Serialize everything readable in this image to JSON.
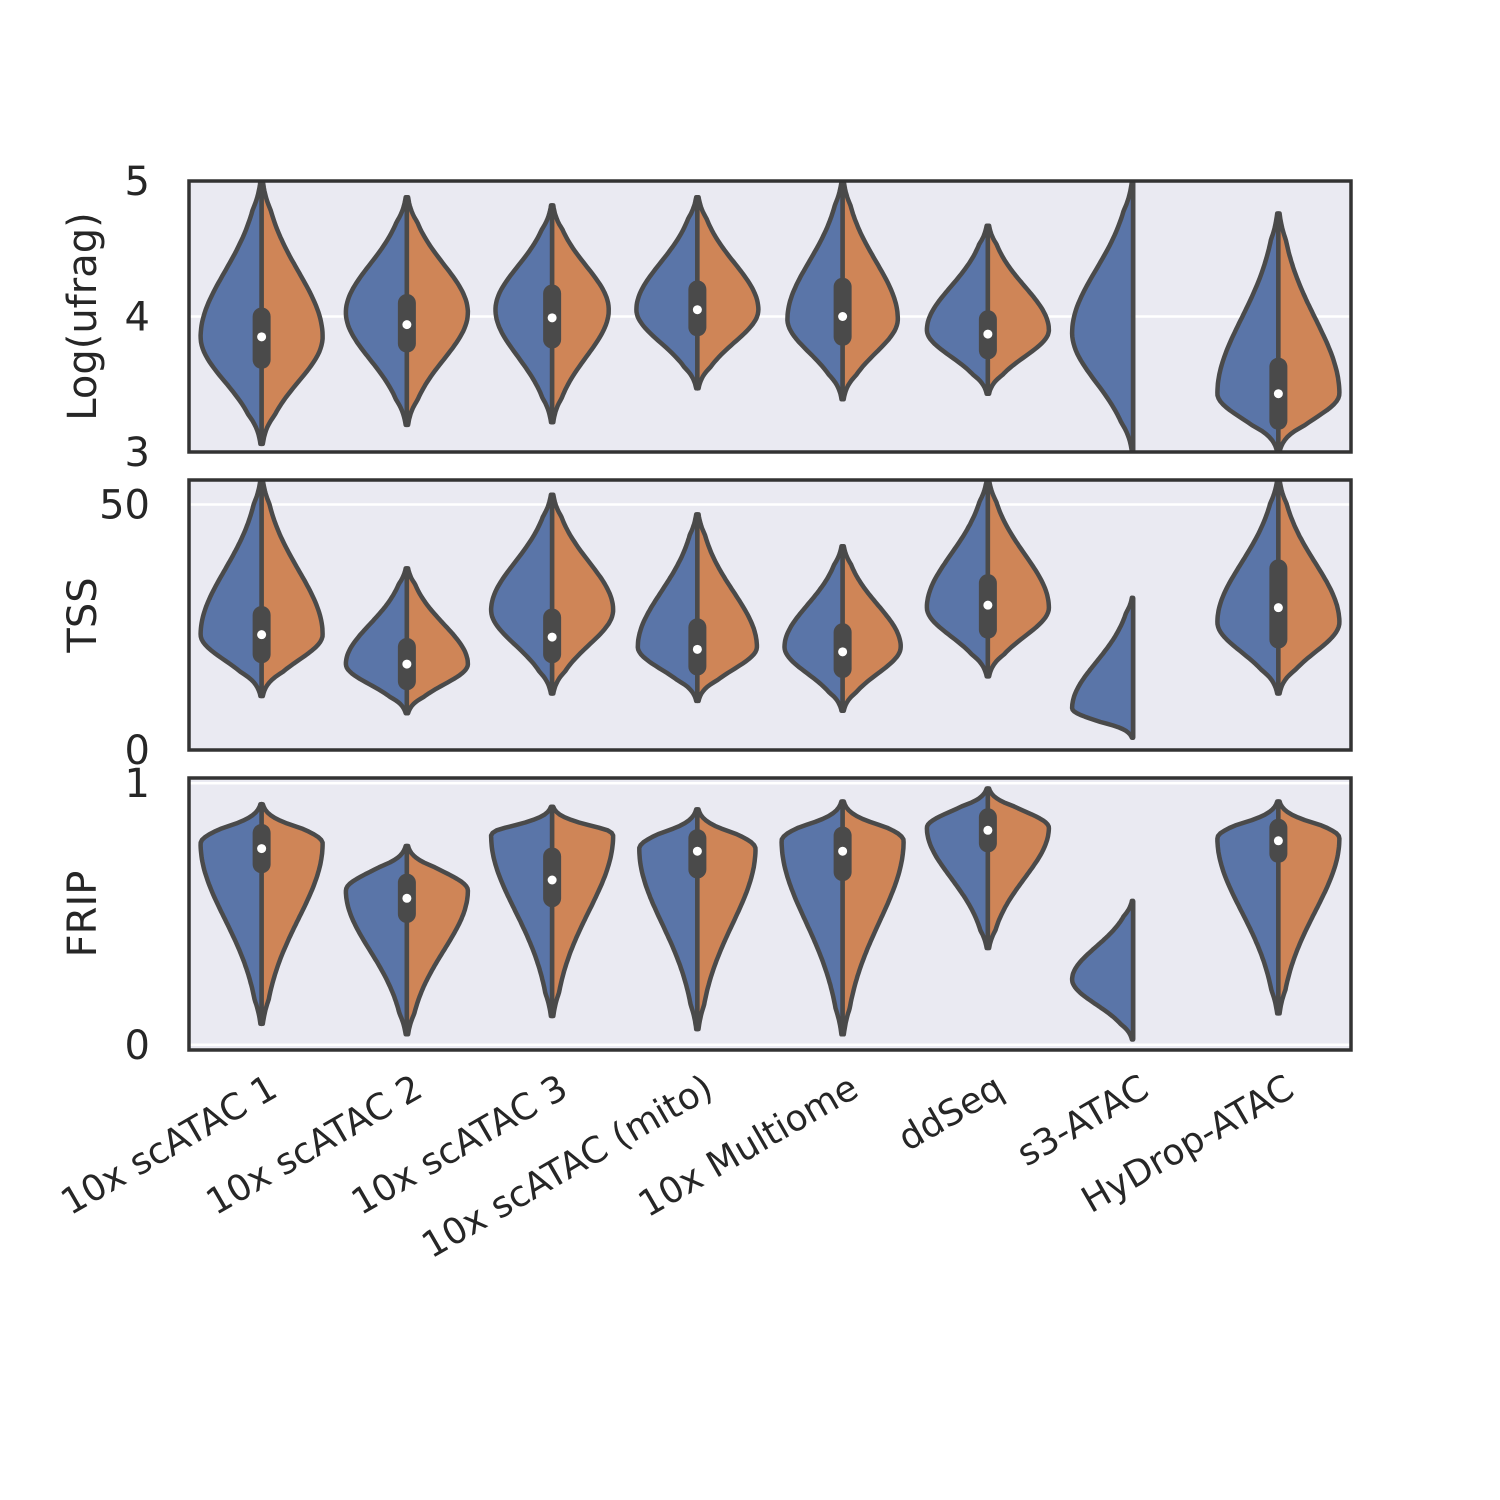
{
  "chart_data": {
    "type": "violin",
    "split": true,
    "colors": {
      "left": "#5a75a8",
      "right": "#cf8557",
      "outline": "#4a4a4a",
      "panel_bg": "#eaeaf2",
      "grid": "#ffffff"
    },
    "categories": [
      "10x scATAC 1",
      "10x scATAC 2",
      "10x scATAC 3",
      "10x scATAC (mito)",
      "10x Multiome",
      "ddSeq",
      "s3-ATAC",
      "HyDrop-ATAC"
    ],
    "panels": [
      {
        "ylabel": "Log(ufrag)",
        "ylim": [
          3,
          5
        ],
        "yticks": [
          "3",
          "4",
          "5"
        ],
        "tick_values": [
          3,
          4,
          5
        ],
        "violins": [
          {
            "min": 3.06,
            "max": 5.0,
            "mode": 3.85,
            "halfwidth": 0.42,
            "median": 3.85,
            "q1": 3.68,
            "q3": 4.0,
            "sides": "both"
          },
          {
            "min": 3.2,
            "max": 4.88,
            "mode": 4.03,
            "halfwidth": 0.42,
            "median": 3.94,
            "q1": 3.8,
            "q3": 4.1,
            "sides": "both"
          },
          {
            "min": 3.22,
            "max": 4.82,
            "mode": 4.05,
            "halfwidth": 0.39,
            "median": 3.99,
            "q1": 3.83,
            "q3": 4.17,
            "sides": "both"
          },
          {
            "min": 3.47,
            "max": 4.88,
            "mode": 4.05,
            "halfwidth": 0.42,
            "median": 4.05,
            "q1": 3.92,
            "q3": 4.2,
            "sides": "both"
          },
          {
            "min": 3.39,
            "max": 5.0,
            "mode": 3.98,
            "halfwidth": 0.38,
            "median": 4.0,
            "q1": 3.85,
            "q3": 4.22,
            "sides": "both"
          },
          {
            "min": 3.43,
            "max": 4.67,
            "mode": 3.9,
            "halfwidth": 0.42,
            "median": 3.87,
            "q1": 3.75,
            "q3": 3.98,
            "sides": "both"
          },
          {
            "min": 3.0,
            "max": 5.0,
            "mode": 3.88,
            "halfwidth": 0.42,
            "sides": "left"
          },
          {
            "min": 3.0,
            "max": 4.76,
            "mode": 3.43,
            "halfwidth": 0.42,
            "median": 3.43,
            "q1": 3.23,
            "q3": 3.63,
            "sides": "both"
          }
        ]
      },
      {
        "ylabel": "TSS",
        "ylim": [
          0,
          55
        ],
        "yticks": [
          "0",
          "50"
        ],
        "tick_values": [
          0,
          50
        ],
        "violins": [
          {
            "min": 11,
            "max": 55,
            "mode": 23.5,
            "halfwidth": 0.42,
            "median": 23.5,
            "q1": 19.5,
            "q3": 27.5,
            "sides": "both"
          },
          {
            "min": 7.5,
            "max": 37,
            "mode": 17.5,
            "halfwidth": 0.42,
            "median": 17.5,
            "q1": 14,
            "q3": 21,
            "sides": "both"
          },
          {
            "min": 11.5,
            "max": 52,
            "mode": 28.5,
            "halfwidth": 0.42,
            "median": 23,
            "q1": 19.5,
            "q3": 27,
            "sides": "both"
          },
          {
            "min": 10,
            "max": 48,
            "mode": 21,
            "halfwidth": 0.41,
            "median": 20.5,
            "q1": 17,
            "q3": 25,
            "sides": "both"
          },
          {
            "min": 8,
            "max": 41.5,
            "mode": 21,
            "halfwidth": 0.4,
            "median": 20,
            "q1": 16.5,
            "q3": 24,
            "sides": "both"
          },
          {
            "min": 15,
            "max": 55,
            "mode": 29,
            "halfwidth": 0.42,
            "median": 29.5,
            "q1": 24.5,
            "q3": 34,
            "sides": "both"
          },
          {
            "min": 2.5,
            "max": 31,
            "mode": 8.5,
            "halfwidth": 0.42,
            "sides": "left"
          },
          {
            "min": 11.5,
            "max": 55,
            "mode": 26,
            "halfwidth": 0.42,
            "median": 29,
            "q1": 22.5,
            "q3": 37,
            "sides": "both"
          }
        ]
      },
      {
        "ylabel": "FRIP",
        "ylim": [
          -0.02,
          1.02
        ],
        "yticks": [
          "0",
          "1"
        ],
        "tick_values": [
          0,
          1
        ],
        "violins": [
          {
            "min": 0.08,
            "max": 0.92,
            "mode": 0.77,
            "halfwidth": 0.42,
            "median": 0.75,
            "q1": 0.69,
            "q3": 0.81,
            "sides": "both"
          },
          {
            "min": 0.04,
            "max": 0.76,
            "mode": 0.59,
            "halfwidth": 0.42,
            "median": 0.56,
            "q1": 0.5,
            "q3": 0.62,
            "sides": "both"
          },
          {
            "min": 0.11,
            "max": 0.91,
            "mode": 0.8,
            "halfwidth": 0.42,
            "median": 0.63,
            "q1": 0.56,
            "q3": 0.72,
            "sides": "both"
          },
          {
            "min": 0.06,
            "max": 0.9,
            "mode": 0.75,
            "halfwidth": 0.4,
            "median": 0.74,
            "q1": 0.67,
            "q3": 0.79,
            "sides": "both"
          },
          {
            "min": 0.04,
            "max": 0.93,
            "mode": 0.78,
            "halfwidth": 0.42,
            "median": 0.74,
            "q1": 0.66,
            "q3": 0.8,
            "sides": "both"
          },
          {
            "min": 0.37,
            "max": 0.98,
            "mode": 0.83,
            "halfwidth": 0.42,
            "median": 0.82,
            "q1": 0.77,
            "q3": 0.87,
            "sides": "both"
          },
          {
            "min": 0.02,
            "max": 0.55,
            "mode": 0.25,
            "halfwidth": 0.42,
            "sides": "left"
          },
          {
            "min": 0.12,
            "max": 0.93,
            "mode": 0.79,
            "halfwidth": 0.42,
            "median": 0.78,
            "q1": 0.73,
            "q3": 0.83,
            "sides": "both"
          }
        ]
      }
    ]
  }
}
